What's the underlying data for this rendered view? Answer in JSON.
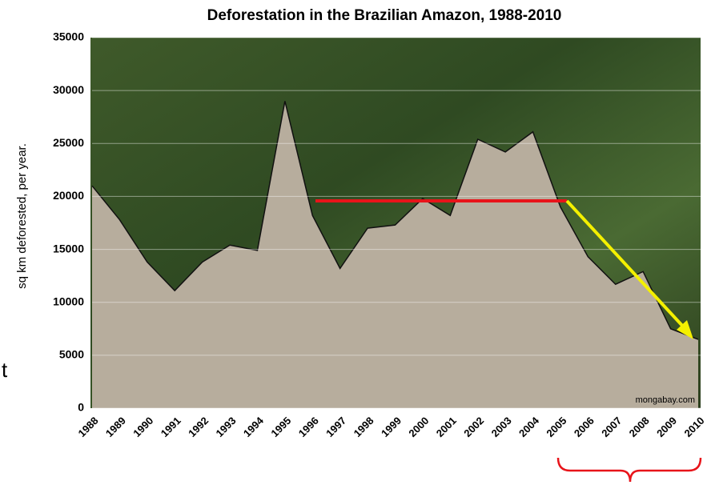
{
  "chart_data": {
    "type": "area",
    "title": "Deforestation in the Brazilian Amazon, 1988-2010",
    "y_label": "sq km deforested, per year.",
    "categories": [
      "1988",
      "1989",
      "1990",
      "1991",
      "1992",
      "1993",
      "1994",
      "1995",
      "1996",
      "1997",
      "1998",
      "1999",
      "2000",
      "2001",
      "2002",
      "2003",
      "2004",
      "2005",
      "2006",
      "2007",
      "2008",
      "2009",
      "2010"
    ],
    "values": [
      21000,
      17800,
      13800,
      11100,
      13800,
      15400,
      14900,
      29000,
      18200,
      13200,
      17000,
      17300,
      19800,
      18200,
      25400,
      24200,
      26100,
      19000,
      14300,
      11700,
      12900,
      7500,
      6500
    ],
    "color": "#b7ad9d",
    "line_color": "#111111",
    "ylim": [
      0,
      35000
    ],
    "yticks": [
      0,
      5000,
      10000,
      15000,
      20000,
      25000,
      30000,
      35000
    ],
    "grid": true,
    "watermark": "mongabay.com",
    "side_text": "t"
  }
}
